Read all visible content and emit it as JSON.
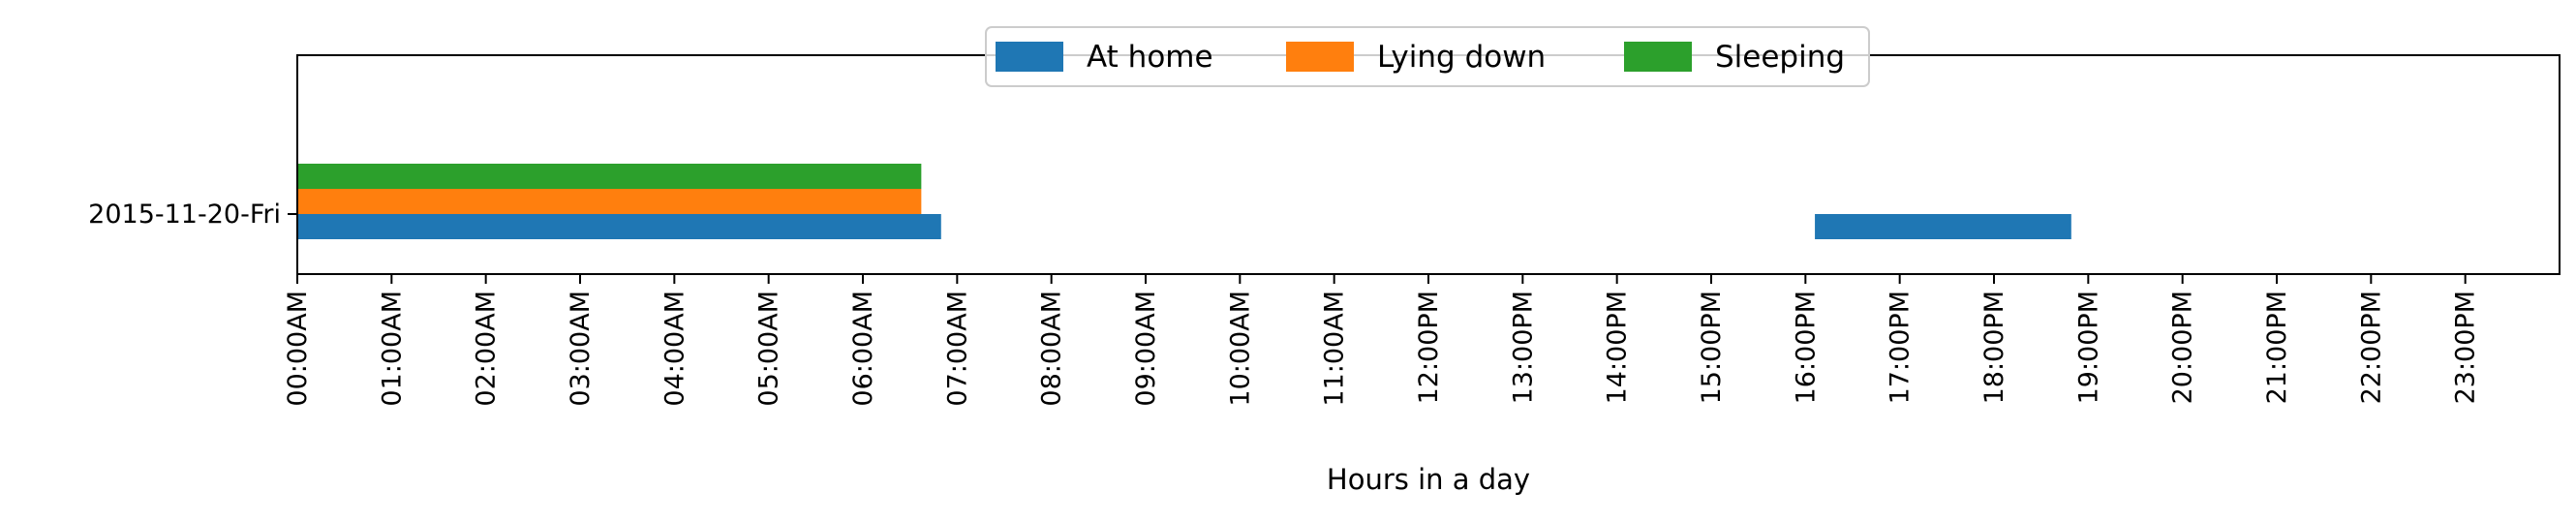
{
  "chart_data": {
    "type": "bar",
    "orientation": "horizontal",
    "title": "",
    "xlabel": "Hours in a day",
    "ylabel": "",
    "xlim": [
      0,
      24
    ],
    "categories": [
      "2015-11-20-Fri"
    ],
    "x_ticks": [
      0,
      1,
      2,
      3,
      4,
      5,
      6,
      7,
      8,
      9,
      10,
      11,
      12,
      13,
      14,
      15,
      16,
      17,
      18,
      19,
      20,
      21,
      22,
      23
    ],
    "x_tick_labels": [
      "00:00AM",
      "01:00AM",
      "02:00AM",
      "03:00AM",
      "04:00AM",
      "05:00AM",
      "06:00AM",
      "07:00AM",
      "08:00AM",
      "09:00AM",
      "10:00AM",
      "11:00AM",
      "12:00PM",
      "13:00PM",
      "14:00PM",
      "15:00PM",
      "16:00PM",
      "17:00PM",
      "18:00PM",
      "19:00PM",
      "20:00PM",
      "21:00PM",
      "22:00PM",
      "23:00PM"
    ],
    "grid": false,
    "legend": {
      "placement": "top-center",
      "columns": 3
    },
    "series": [
      {
        "name": "At home",
        "color": "#1f77b4",
        "intervals": [
          {
            "start": 0.0,
            "end": 6.83
          },
          {
            "start": 16.1,
            "end": 18.82
          }
        ]
      },
      {
        "name": "Lying down",
        "color": "#ff7f0e",
        "intervals": [
          {
            "start": 0.0,
            "end": 6.62
          }
        ]
      },
      {
        "name": "Sleeping",
        "color": "#2ca02c",
        "intervals": [
          {
            "start": 0.0,
            "end": 6.62
          }
        ]
      }
    ]
  }
}
